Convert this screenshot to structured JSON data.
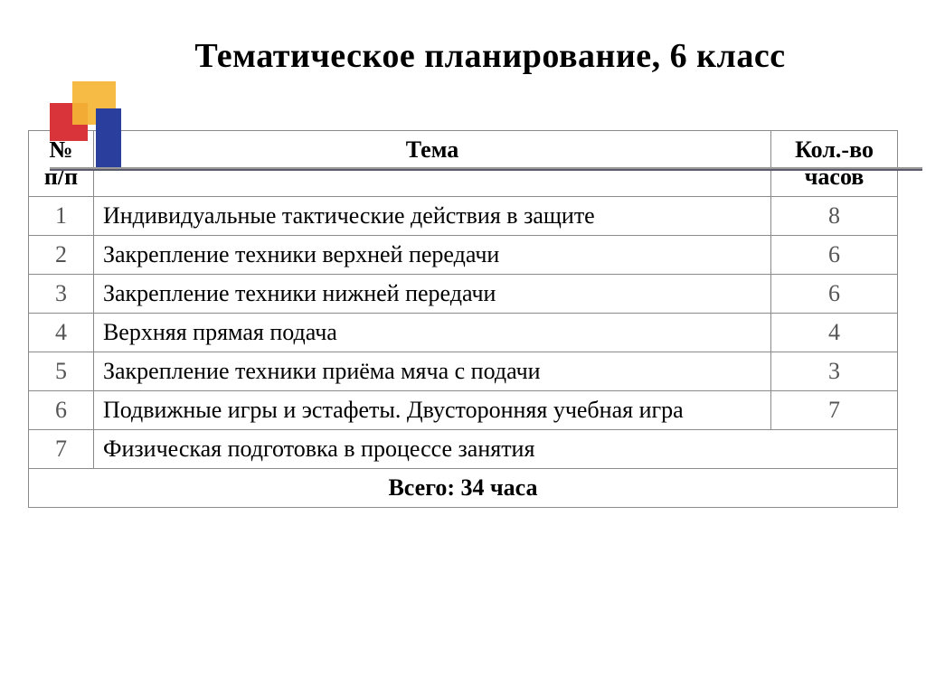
{
  "title": "Тематическое планирование, 6 класс",
  "decoration": {
    "red": "#d8343a",
    "yellow": "#f4b534",
    "blue": "#2a3e9e"
  },
  "table": {
    "headers": {
      "number": "№ п/п",
      "topic": "Тема",
      "hours": "Кол.-во часов"
    },
    "rows": [
      {
        "num": "1",
        "topic": "Индивидуальные тактические действия в защите",
        "hours": "8"
      },
      {
        "num": "2",
        "topic": "Закрепление техники верхней передачи",
        "hours": "6"
      },
      {
        "num": "3",
        "topic": "Закрепление техники нижней передачи",
        "hours": "6"
      },
      {
        "num": "4",
        "topic": "Верхняя прямая подача",
        "hours": "4"
      },
      {
        "num": "5",
        "topic": "Закрепление техники приёма мяча с подачи",
        "hours": "3"
      },
      {
        "num": "6",
        "topic": "Подвижные игры и эстафеты. Двусторонняя учебная игра",
        "hours": "7"
      }
    ],
    "merged_row": {
      "num": "7",
      "topic": "Физическая подготовка в процессе занятия"
    },
    "total": "Всего: 34 часа",
    "columns": {
      "number_width": 72,
      "topic_width": 750,
      "hours_width": 140
    },
    "font_size": 26,
    "border_color": "#8a8a8a"
  },
  "typography": {
    "title_fontsize": 38,
    "title_weight": "bold",
    "font_family": "Times New Roman"
  },
  "background_color": "#ffffff"
}
